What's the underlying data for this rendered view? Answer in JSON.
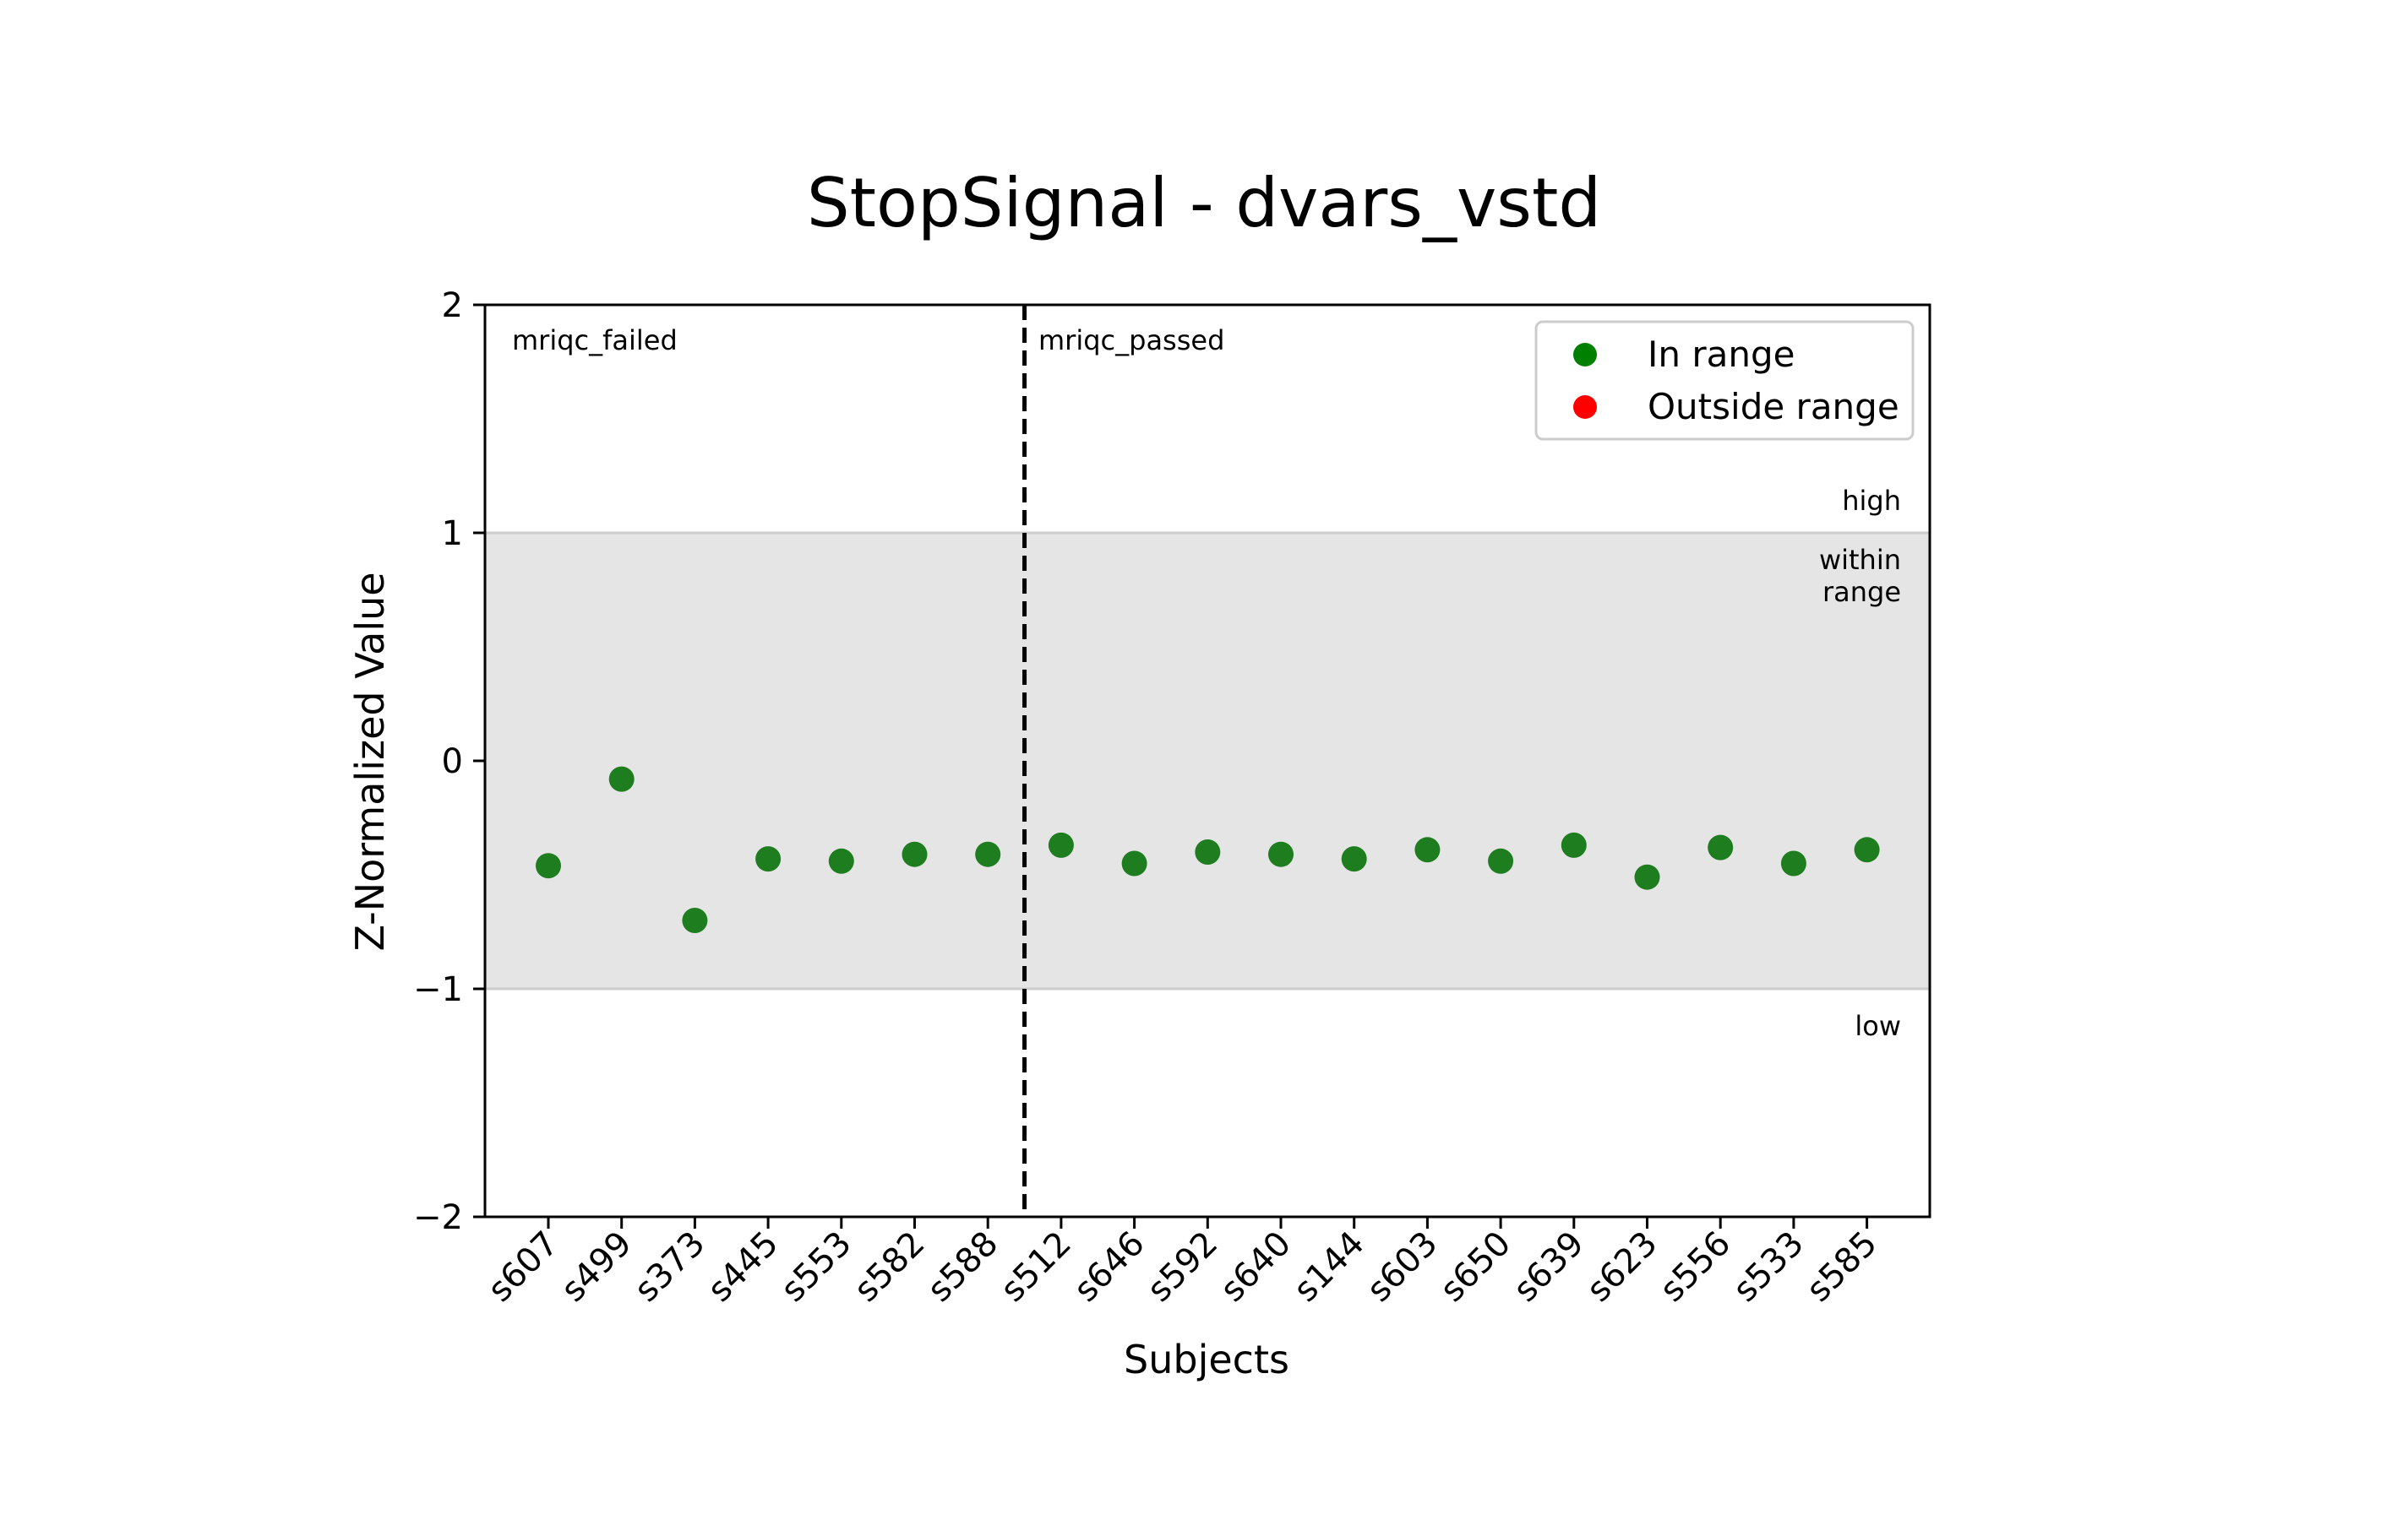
{
  "chart_data": {
    "type": "scatter",
    "title": "StopSignal - dvars_vstd",
    "xlabel": "Subjects",
    "ylabel": "Z-Normalized Value",
    "ylim": [
      -2,
      2
    ],
    "yticks": [
      2,
      1,
      0,
      -1,
      -2
    ],
    "ytick_labels": [
      "2",
      "1",
      "0",
      "−1",
      "−2"
    ],
    "categories": [
      "s607",
      "s499",
      "s373",
      "s445",
      "s553",
      "s582",
      "s588",
      "s512",
      "s646",
      "s592",
      "s640",
      "s144",
      "s603",
      "s650",
      "s639",
      "s623",
      "s556",
      "s533",
      "s585"
    ],
    "series": [
      {
        "name": "In range",
        "color": "#1e7d1e",
        "values": [
          -0.46,
          -0.08,
          -0.7,
          -0.43,
          -0.44,
          -0.41,
          -0.41,
          -0.37,
          -0.45,
          -0.4,
          -0.41,
          -0.43,
          -0.39,
          -0.44,
          -0.37,
          -0.51,
          -0.38,
          -0.45,
          -0.39
        ]
      }
    ],
    "range_band": {
      "low": -1,
      "high": 1,
      "color": "#e5e5e5"
    },
    "region_labels": {
      "high": "high",
      "within": [
        "within",
        "range"
      ],
      "low": "low"
    },
    "group_labels": {
      "failed": "mriqc_failed",
      "passed": "mriqc_passed"
    },
    "divider_after_index": 6,
    "legend": {
      "position": "top-right",
      "entries": [
        {
          "label": "In range",
          "color": "#008000"
        },
        {
          "label": "Outside range",
          "color": "#ff0000"
        }
      ]
    },
    "grid": false
  }
}
